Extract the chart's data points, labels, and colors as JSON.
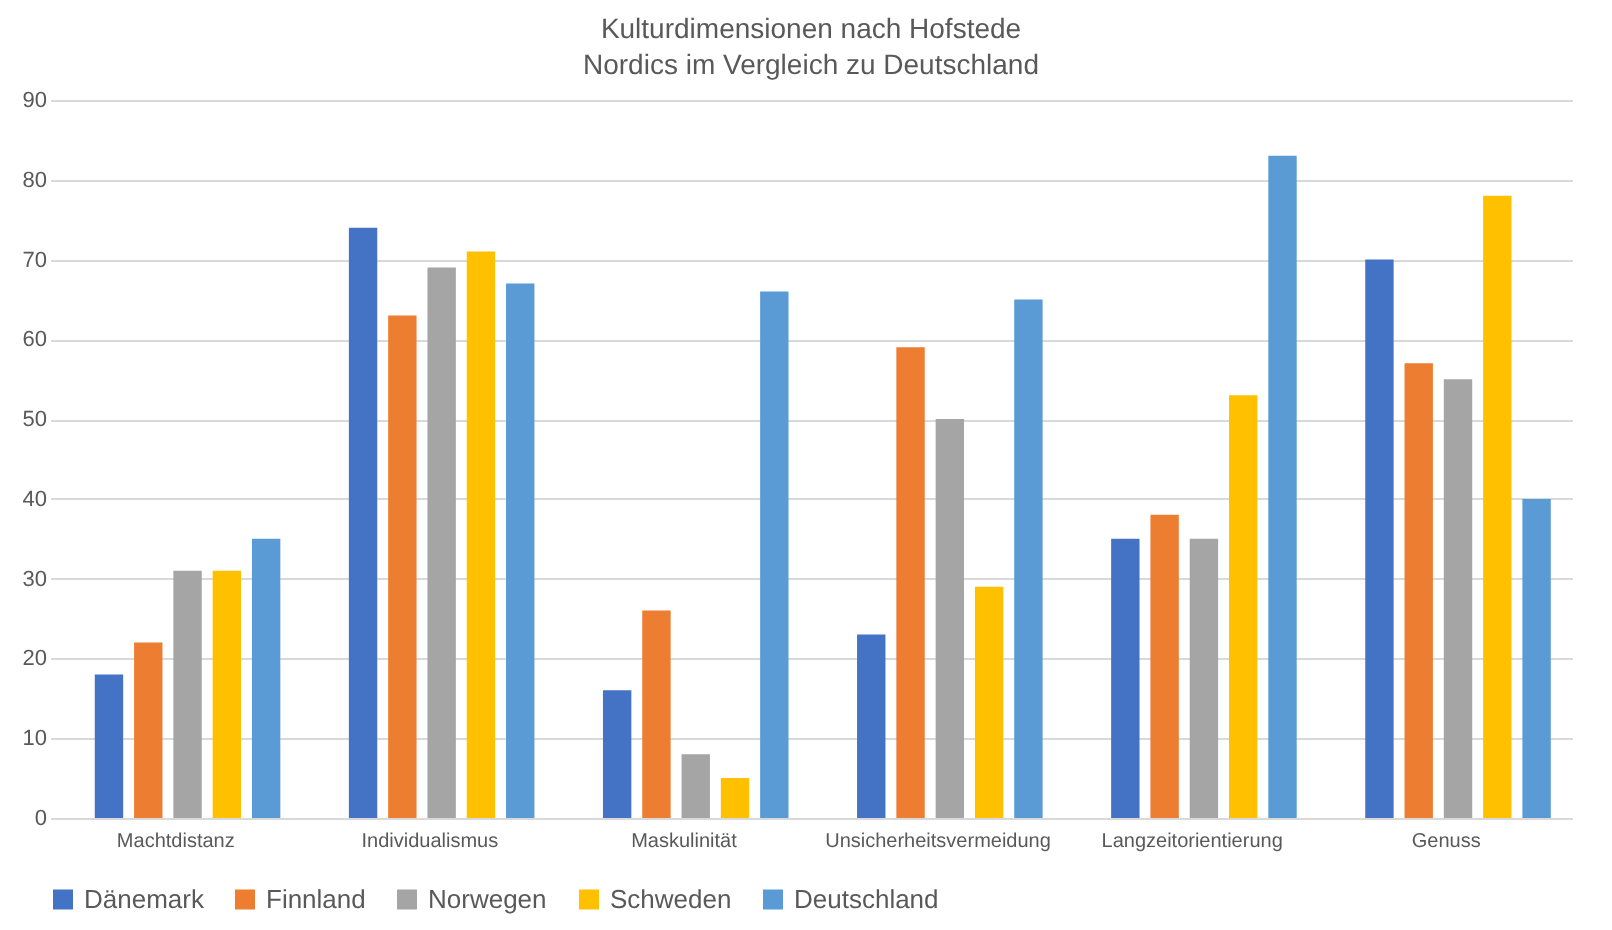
{
  "chart_data": {
    "type": "bar",
    "title": "Kulturdimensionen nach Hofstede",
    "subtitle": "Nordics im Vergleich zu Deutschland",
    "categories": [
      "Machtdistanz",
      "Individualismus",
      "Maskulinität",
      "Unsicherheitsvermeidung",
      "Langzeitorientierung",
      "Genuss"
    ],
    "series": [
      {
        "name": "Dänemark",
        "color": "#4472c4",
        "values": [
          18,
          74,
          16,
          23,
          35,
          70
        ]
      },
      {
        "name": "Finnland",
        "color": "#ed7d31",
        "values": [
          22,
          63,
          26,
          59,
          38,
          57
        ]
      },
      {
        "name": "Norwegen",
        "color": "#a5a5a5",
        "values": [
          31,
          69,
          8,
          50,
          35,
          55
        ]
      },
      {
        "name": "Schweden",
        "color": "#ffc000",
        "values": [
          31,
          71,
          5,
          29,
          53,
          78
        ]
      },
      {
        "name": "Deutschland",
        "color": "#5b9bd5",
        "values": [
          35,
          67,
          66,
          65,
          83,
          40
        ]
      }
    ],
    "ylim": [
      0,
      90
    ],
    "yticks": [
      0,
      10,
      20,
      30,
      40,
      50,
      60,
      70,
      80,
      90
    ],
    "grid": "y",
    "legend": "bottom"
  }
}
